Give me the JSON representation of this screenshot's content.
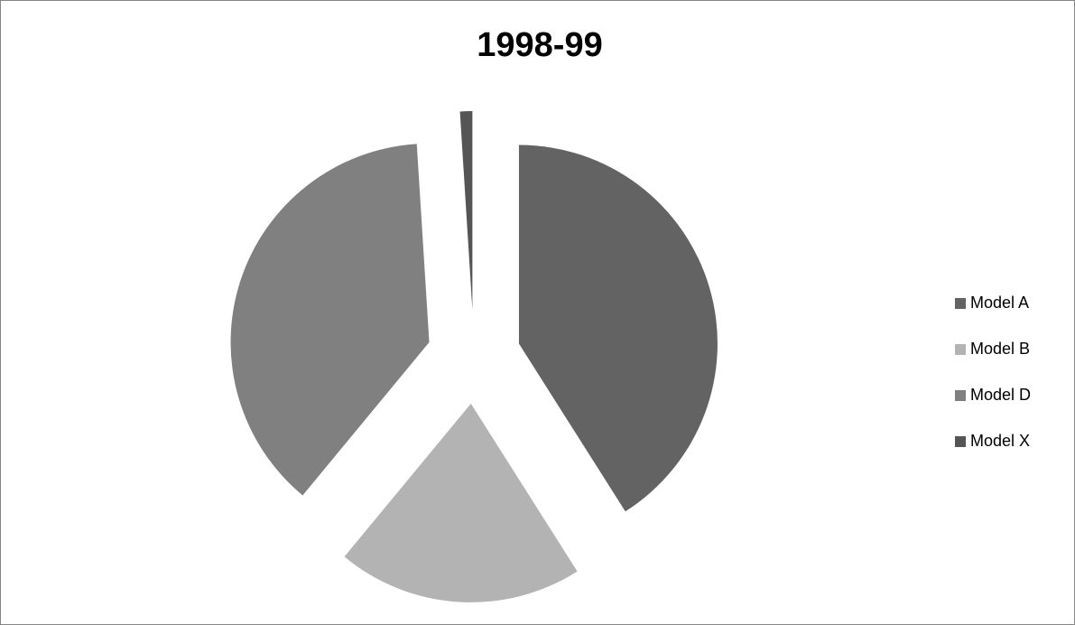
{
  "chart_data": {
    "type": "pie",
    "title": "1998-99",
    "categories": [
      "Model A",
      "Model B",
      "Model D",
      "Model X"
    ],
    "values": [
      41,
      20,
      38,
      1
    ],
    "colors": [
      "#636363",
      "#b3b3b3",
      "#808080",
      "#555555"
    ],
    "exploded": true,
    "legend": "right"
  }
}
